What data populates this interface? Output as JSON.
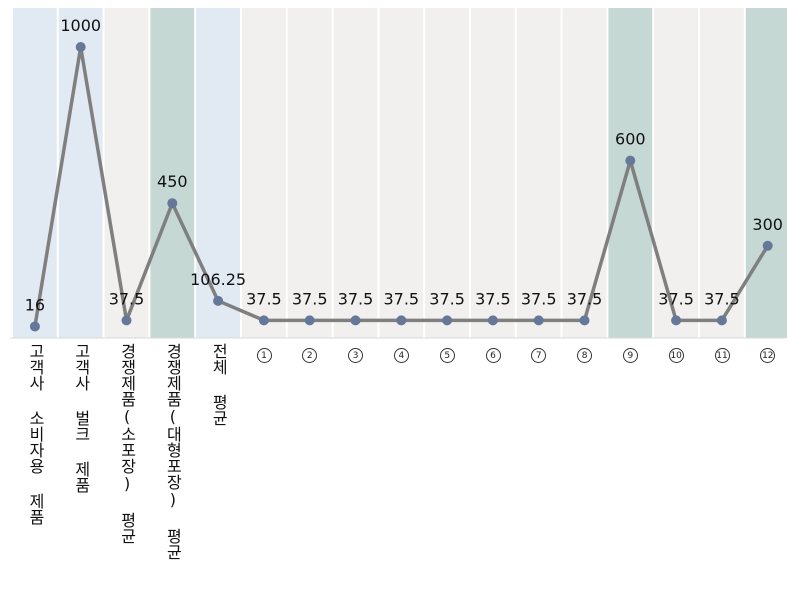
{
  "chart_data": {
    "type": "line",
    "categories": [
      "고객사 소비자용 제품",
      "고객사 벌크 제품",
      "경쟁제품(소포장) 평균",
      "경쟁제품(대형포장) 평균",
      "전체 평균",
      "1",
      "2",
      "3",
      "4",
      "5",
      "6",
      "7",
      "8",
      "9",
      "10",
      "11",
      "12"
    ],
    "values": [
      16,
      1000,
      37.5,
      450,
      106.25,
      37.5,
      37.5,
      37.5,
      37.5,
      37.5,
      37.5,
      37.5,
      37.5,
      600,
      37.5,
      37.5,
      300
    ],
    "data_labels": [
      "16",
      "1000",
      "37.5",
      "450",
      "106.25",
      "37.5",
      "37.5",
      "37.5",
      "37.5",
      "37.5",
      "37.5",
      "37.5",
      "37.5",
      "600",
      "37.5",
      "37.5",
      "300"
    ],
    "circled_labels": [
      "①",
      "②",
      "③",
      "④",
      "⑤",
      "⑥",
      "⑦",
      "⑧",
      "⑨",
      "⑩",
      "⑪",
      "⑫"
    ],
    "ylim": [
      0,
      1000
    ],
    "grid": false,
    "band_colors": [
      "#e1e9f3",
      "#e1e9f3",
      "#f1f0ef",
      "#c6d8d4",
      "#e1e9f3",
      "#f1f0ef",
      "#f1f0ef",
      "#f1f0ef",
      "#f1f0ef",
      "#f1f0ef",
      "#f1f0ef",
      "#f1f0ef",
      "#f1f0ef",
      "#c6d8d4",
      "#f1f0ef",
      "#f1f0ef",
      "#c6d8d4"
    ],
    "line_color": "#7f7f7f",
    "marker_color": "#66789a",
    "title": "",
    "xlabel": "",
    "ylabel": ""
  }
}
